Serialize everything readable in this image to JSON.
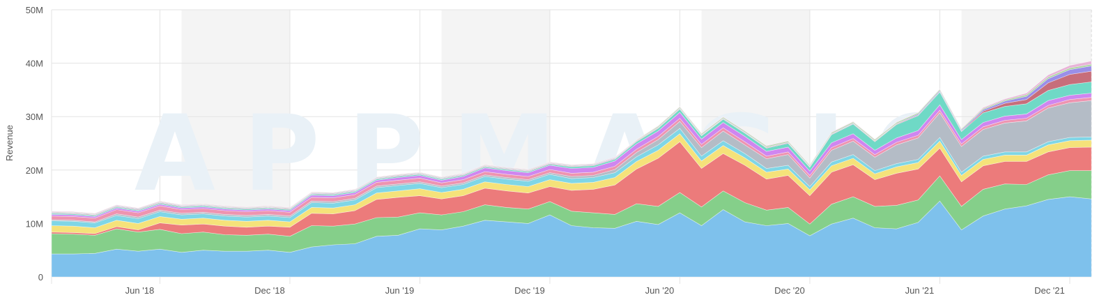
{
  "chart_data": {
    "type": "area",
    "stacked": true,
    "title": "",
    "xlabel": "",
    "ylabel": "Revenue",
    "watermark": "APPMAGIC",
    "ylim": [
      0,
      50000000
    ],
    "y_ticks": [
      {
        "value": 0,
        "label": "0"
      },
      {
        "value": 10000000,
        "label": "10M"
      },
      {
        "value": 20000000,
        "label": "20M"
      },
      {
        "value": 30000000,
        "label": "30M"
      },
      {
        "value": 40000000,
        "label": "40M"
      },
      {
        "value": 50000000,
        "label": "50M"
      }
    ],
    "x": [
      "2018-01",
      "2018-02",
      "2018-03",
      "2018-04",
      "2018-05",
      "2018-06",
      "2018-07",
      "2018-08",
      "2018-09",
      "2018-10",
      "2018-11",
      "2018-12",
      "2019-01",
      "2019-02",
      "2019-03",
      "2019-04",
      "2019-05",
      "2019-06",
      "2019-07",
      "2019-08",
      "2019-09",
      "2019-10",
      "2019-11",
      "2019-12",
      "2020-01",
      "2020-02",
      "2020-03",
      "2020-04",
      "2020-05",
      "2020-06",
      "2020-07",
      "2020-08",
      "2020-09",
      "2020-10",
      "2020-11",
      "2020-12",
      "2021-01",
      "2021-02",
      "2021-03",
      "2021-04",
      "2021-05",
      "2021-06",
      "2021-07",
      "2021-08",
      "2021-09",
      "2021-10",
      "2021-11",
      "2021-12",
      "2022-01"
    ],
    "x_ticks": [
      {
        "value": "2018-06",
        "label": "Jun '18"
      },
      {
        "value": "2018-12",
        "label": "Dec '18"
      },
      {
        "value": "2019-06",
        "label": "Jun '19"
      },
      {
        "value": "2019-12",
        "label": "Dec '19"
      },
      {
        "value": "2020-06",
        "label": "Jun '20"
      },
      {
        "value": "2020-12",
        "label": "Dec '20"
      },
      {
        "value": "2021-06",
        "label": "Jun '21"
      },
      {
        "value": "2021-12",
        "label": "Dec '21"
      }
    ],
    "shaded_bands": [
      [
        "2018-07",
        "2018-12"
      ],
      [
        "2019-07",
        "2019-12"
      ],
      [
        "2020-07",
        "2020-12"
      ],
      [
        "2021-07",
        "2022-01"
      ]
    ],
    "grid": true,
    "legend": "none",
    "series": [
      {
        "color": "#7ec1ec",
        "values": [
          4.3,
          4.3,
          4.4,
          5.2,
          4.8,
          5.2,
          4.6,
          5.0,
          4.8,
          4.8,
          5.0,
          4.6,
          5.6,
          6.0,
          6.2,
          7.6,
          7.8,
          9.0,
          8.8,
          9.5,
          10.6,
          10.3,
          10.0,
          11.6,
          9.6,
          9.2,
          9.1,
          10.4,
          9.8,
          12.0,
          9.6,
          12.6,
          10.3,
          9.6,
          10.0,
          7.7,
          9.9,
          11.0,
          9.2,
          9.0,
          10.2,
          14.2,
          8.8,
          11.4,
          12.7,
          13.3,
          14.5,
          15.0,
          14.6
        ]
      },
      {
        "color": "#85cf8a",
        "values": [
          3.8,
          3.7,
          3.4,
          3.8,
          3.6,
          3.7,
          3.5,
          3.4,
          3.1,
          3.0,
          3.0,
          3.0,
          4.0,
          3.5,
          3.7,
          3.5,
          3.4,
          3.0,
          2.8,
          2.7,
          2.9,
          2.7,
          2.7,
          2.5,
          2.7,
          2.8,
          2.6,
          3.3,
          3.4,
          3.8,
          3.5,
          3.5,
          3.6,
          2.9,
          3.0,
          2.2,
          3.7,
          4.0,
          4.0,
          4.4,
          4.2,
          4.7,
          4.4,
          5.0,
          4.7,
          4.0,
          4.6,
          4.9,
          5.3
        ]
      },
      {
        "color": "#ec7b7b",
        "values": [
          0.3,
          0.3,
          0.3,
          0.4,
          0.4,
          1.2,
          1.6,
          1.5,
          1.6,
          1.5,
          1.5,
          1.7,
          2.3,
          2.3,
          2.5,
          3.4,
          3.7,
          3.2,
          3.0,
          3.0,
          3.1,
          3.1,
          3.0,
          2.8,
          3.9,
          4.4,
          5.5,
          6.5,
          9.0,
          9.5,
          7.2,
          7.0,
          7.0,
          5.8,
          6.0,
          5.3,
          6.0,
          6.0,
          5.0,
          6.0,
          5.8,
          5.2,
          4.6,
          4.4,
          4.2,
          4.3,
          4.3,
          4.3,
          4.4
        ]
      },
      {
        "color": "#f5e27a",
        "values": [
          1.2,
          1.2,
          1.1,
          1.2,
          1.2,
          1.2,
          1.1,
          1.1,
          1.1,
          1.1,
          1.1,
          1.0,
          1.1,
          1.1,
          1.1,
          1.2,
          1.2,
          1.3,
          1.2,
          1.2,
          1.2,
          1.2,
          1.2,
          1.3,
          1.3,
          1.3,
          1.4,
          1.4,
          1.5,
          1.5,
          1.4,
          1.5,
          1.4,
          1.3,
          1.2,
          1.1,
          1.2,
          1.2,
          1.1,
          1.2,
          1.2,
          1.3,
          1.2,
          1.2,
          1.2,
          1.2,
          1.3,
          1.3,
          1.3
        ]
      },
      {
        "color": "#7fd6e6",
        "values": [
          0.9,
          0.9,
          0.9,
          0.9,
          0.9,
          0.9,
          0.8,
          0.8,
          0.8,
          0.8,
          0.8,
          0.8,
          0.9,
          0.9,
          0.9,
          1.0,
          1.0,
          1.0,
          0.9,
          0.9,
          1.0,
          1.0,
          1.0,
          1.0,
          0.9,
          0.9,
          0.9,
          0.9,
          1.0,
          1.0,
          0.9,
          0.9,
          0.8,
          0.7,
          0.7,
          0.6,
          0.7,
          0.7,
          0.6,
          0.6,
          0.6,
          0.7,
          0.6,
          0.6,
          0.6,
          0.6,
          0.6,
          0.6,
          0.6
        ]
      },
      {
        "color": "#b4bcc6",
        "values": [
          0.2,
          0.2,
          0.2,
          0.3,
          0.3,
          0.3,
          0.3,
          0.3,
          0.3,
          0.3,
          0.3,
          0.3,
          0.3,
          0.3,
          0.3,
          0.3,
          0.3,
          0.3,
          0.3,
          0.3,
          0.3,
          0.3,
          0.3,
          0.3,
          0.4,
          0.4,
          0.6,
          0.8,
          1.0,
          1.3,
          1.6,
          1.8,
          1.6,
          1.8,
          2.0,
          1.6,
          2.2,
          2.5,
          2.5,
          3.5,
          4.0,
          4.6,
          4.8,
          5.0,
          5.4,
          5.8,
          6.3,
          6.5,
          6.8
        ]
      },
      {
        "color": "#ee94b0",
        "values": [
          0.7,
          0.7,
          0.7,
          0.8,
          0.8,
          0.8,
          0.7,
          0.7,
          0.7,
          0.7,
          0.7,
          0.7,
          0.7,
          0.7,
          0.7,
          0.7,
          0.7,
          0.7,
          0.6,
          0.6,
          0.6,
          0.6,
          0.6,
          0.6,
          0.6,
          0.6,
          0.6,
          0.6,
          0.6,
          0.6,
          0.6,
          0.6,
          0.6,
          0.5,
          0.5,
          0.5,
          0.5,
          0.5,
          0.5,
          0.5,
          0.5,
          0.5,
          0.5,
          0.5,
          0.5,
          0.5,
          0.5,
          0.6,
          0.6
        ]
      },
      {
        "color": "#cf86f0",
        "values": [
          0.3,
          0.3,
          0.3,
          0.3,
          0.3,
          0.3,
          0.3,
          0.3,
          0.3,
          0.3,
          0.3,
          0.3,
          0.4,
          0.4,
          0.4,
          0.4,
          0.5,
          0.5,
          0.5,
          0.6,
          0.7,
          0.7,
          0.7,
          0.8,
          0.9,
          0.9,
          1.0,
          1.0,
          1.0,
          1.1,
          1.0,
          1.0,
          1.0,
          0.9,
          0.9,
          0.8,
          0.9,
          0.9,
          0.8,
          0.8,
          0.9,
          1.0,
          0.8,
          0.8,
          0.8,
          0.8,
          0.9,
          0.8,
          0.8
        ]
      },
      {
        "color": "#6fd9c6",
        "values": [
          0.2,
          0.2,
          0.2,
          0.2,
          0.2,
          0.2,
          0.2,
          0.2,
          0.2,
          0.2,
          0.2,
          0.2,
          0.2,
          0.2,
          0.2,
          0.2,
          0.2,
          0.2,
          0.2,
          0.2,
          0.2,
          0.2,
          0.2,
          0.2,
          0.3,
          0.3,
          0.3,
          0.4,
          0.5,
          0.6,
          0.6,
          0.6,
          0.6,
          0.6,
          0.7,
          0.7,
          1.5,
          1.8,
          1.6,
          2.5,
          2.8,
          2.4,
          1.5,
          1.8,
          1.8,
          1.9,
          1.9,
          2.0,
          2.1
        ]
      },
      {
        "color": "#c76e7b",
        "values": [
          0.1,
          0.1,
          0.1,
          0.1,
          0.1,
          0.1,
          0.1,
          0.1,
          0.1,
          0.1,
          0.1,
          0.1,
          0.1,
          0.1,
          0.1,
          0.1,
          0.1,
          0.1,
          0.1,
          0.1,
          0.1,
          0.1,
          0.1,
          0.1,
          0.1,
          0.1,
          0.1,
          0.1,
          0.1,
          0.1,
          0.1,
          0.1,
          0.1,
          0.1,
          0.1,
          0.1,
          0.1,
          0.1,
          0.1,
          0.1,
          0.1,
          0.1,
          0.1,
          0.3,
          0.6,
          0.8,
          1.4,
          1.9,
          2.0
        ]
      },
      {
        "color": "#9a8fe8",
        "values": [
          0.1,
          0.1,
          0.1,
          0.1,
          0.1,
          0.1,
          0.1,
          0.1,
          0.1,
          0.1,
          0.1,
          0.1,
          0.1,
          0.1,
          0.1,
          0.1,
          0.1,
          0.1,
          0.1,
          0.1,
          0.1,
          0.1,
          0.1,
          0.1,
          0.1,
          0.1,
          0.1,
          0.1,
          0.1,
          0.1,
          0.1,
          0.1,
          0.1,
          0.1,
          0.1,
          0.1,
          0.1,
          0.1,
          0.1,
          0.1,
          0.2,
          0.2,
          0.2,
          0.3,
          0.4,
          0.6,
          0.8,
          0.9,
          1.0
        ]
      },
      {
        "color": "#a6d39a",
        "values": [
          0.1,
          0.1,
          0.1,
          0.1,
          0.1,
          0.1,
          0.1,
          0.1,
          0.1,
          0.1,
          0.1,
          0.1,
          0.1,
          0.1,
          0.1,
          0.1,
          0.1,
          0.1,
          0.1,
          0.1,
          0.1,
          0.1,
          0.1,
          0.1,
          0.1,
          0.1,
          0.1,
          0.1,
          0.2,
          0.2,
          0.2,
          0.2,
          0.2,
          0.2,
          0.2,
          0.2,
          0.2,
          0.2,
          0.2,
          0.2,
          0.2,
          0.2,
          0.2,
          0.2,
          0.2,
          0.3,
          0.3,
          0.3,
          0.3
        ]
      },
      {
        "color": "#e8b4d8",
        "values": [
          0.1,
          0.1,
          0.1,
          0.1,
          0.1,
          0.1,
          0.1,
          0.1,
          0.1,
          0.1,
          0.1,
          0.1,
          0.1,
          0.1,
          0.1,
          0.1,
          0.1,
          0.1,
          0.1,
          0.1,
          0.1,
          0.1,
          0.1,
          0.1,
          0.1,
          0.1,
          0.1,
          0.1,
          0.1,
          0.1,
          0.1,
          0.1,
          0.1,
          0.1,
          0.1,
          0.1,
          0.1,
          0.1,
          0.1,
          0.1,
          0.1,
          0.1,
          0.1,
          0.2,
          0.2,
          0.3,
          0.4,
          0.5,
          0.6
        ]
      }
    ]
  }
}
